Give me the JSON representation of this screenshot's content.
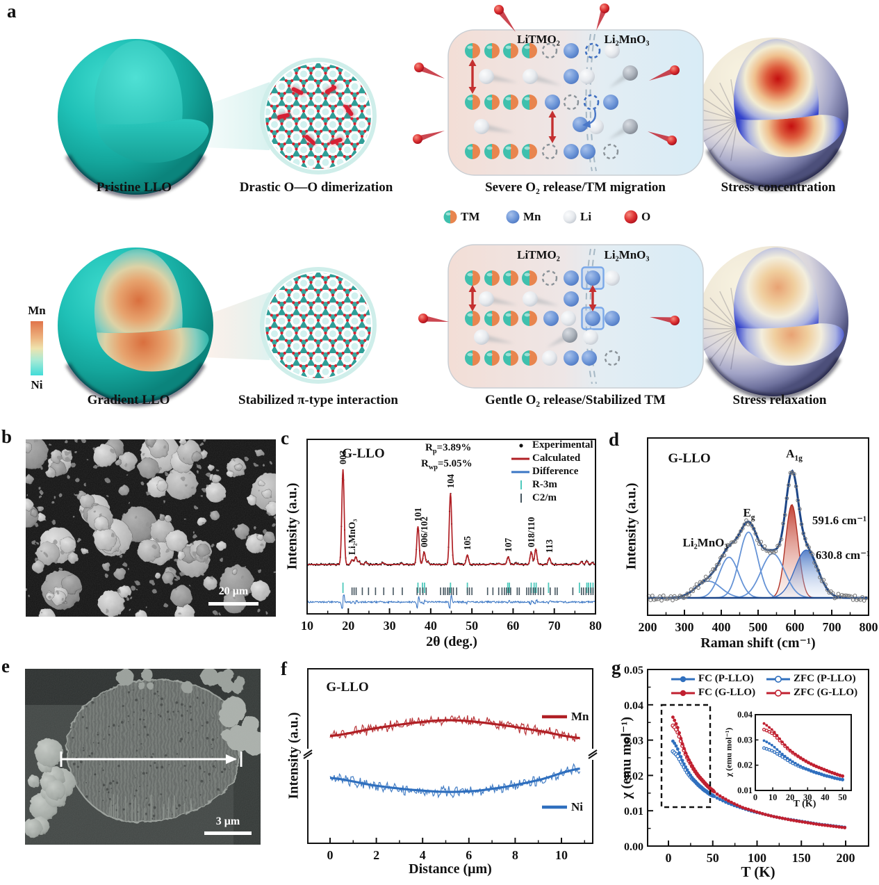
{
  "colors": {
    "teal": "#17b3aa",
    "orange": "#e0784a",
    "mn_blue": "#5b86cf",
    "li_grey": "#e7eaee",
    "o_red": "#cf1f2e",
    "xrd_calc": "#b01f24",
    "xrd_diff": "#3a76c4",
    "r3m_tick": "#4ec9bc",
    "c2m_tick": "#44545e",
    "raman_envelope": "#1c4587",
    "raman_component": "#6593d6",
    "raman_red": "#c0392b",
    "raman_blue": "#3a6bbf",
    "mn_red": "#b01f24",
    "ni_blue": "#2f6fbe",
    "fc_blue": "#2f6fbe",
    "fc_red": "#c02030"
  },
  "panel_a": {
    "label": "a",
    "row1": {
      "caption1": "Pristine LLO",
      "caption2": "Drastic O—O dimerization",
      "caption3": "Severe O₂ release/TM migration",
      "caption4": "Stress concentration",
      "box_title_left": "LiTMO₂",
      "box_title_right": "Li₂MnO₃"
    },
    "row2": {
      "caption1": "Gradient LLO",
      "caption2": "Stabilized π-type interaction",
      "caption3": "Gentle O₂ release/Stabilized TM",
      "caption4": "Stress relaxation",
      "box_title_left": "LiTMO₂",
      "box_title_right": "Li₂MnO₃"
    },
    "colorbar": {
      "top": "Mn",
      "bottom": "Ni"
    },
    "legend": [
      {
        "label": "TM"
      },
      {
        "label": "Mn"
      },
      {
        "label": "Li"
      },
      {
        "label": "O"
      }
    ]
  },
  "panel_b": {
    "label": "b",
    "scalebar": "20 μm"
  },
  "panel_e": {
    "label": "e",
    "scalebar": "3 μm"
  },
  "chart_data": [
    {
      "id": "xrd",
      "type": "line",
      "panel_label": "c",
      "title": "G-LLO",
      "xlabel": "2θ (deg.)",
      "ylabel": "Intensity (a.u.)",
      "xlim": [
        10,
        80
      ],
      "xticks": [
        10,
        20,
        30,
        40,
        50,
        60,
        70,
        80
      ],
      "r_factors": [
        {
          "base": "R",
          "sub": "p",
          "val": "=3.89%"
        },
        {
          "base": "R",
          "sub": "wp",
          "val": "=5.05%"
        }
      ],
      "legend": [
        {
          "label": "Experimental",
          "marker": "dot",
          "color": "#111111"
        },
        {
          "label": "Calculated",
          "marker": "line",
          "color": "#b01f24"
        },
        {
          "label": "Difference",
          "marker": "line",
          "color": "#3a76c4"
        },
        {
          "label": "R-3m",
          "marker": "tick",
          "color": "#4ec9bc"
        },
        {
          "label": "C2/m",
          "marker": "tick",
          "color": "#44545e"
        }
      ],
      "peaks": [
        {
          "two_theta": 18.7,
          "rel_intensity": 1.0,
          "hkl": "003"
        },
        {
          "two_theta": 20.9,
          "rel_intensity": 0.05,
          "hkl": "Li₂MnO₃"
        },
        {
          "two_theta": 21.8,
          "rel_intensity": 0.08
        },
        {
          "two_theta": 22.6,
          "rel_intensity": 0.03
        },
        {
          "two_theta": 24.3,
          "rel_intensity": 0.025
        },
        {
          "two_theta": 28.4,
          "rel_intensity": 0.02
        },
        {
          "two_theta": 32.9,
          "rel_intensity": 0.012
        },
        {
          "two_theta": 36.9,
          "rel_intensity": 0.4,
          "hkl": "101"
        },
        {
          "two_theta": 38.4,
          "rel_intensity": 0.13,
          "hkl": "006/102"
        },
        {
          "two_theta": 39.3,
          "rel_intensity": 0.03
        },
        {
          "two_theta": 44.8,
          "rel_intensity": 0.75,
          "hkl": "104"
        },
        {
          "two_theta": 46.5,
          "rel_intensity": 0.012
        },
        {
          "two_theta": 48.9,
          "rel_intensity": 0.1,
          "hkl": "105"
        },
        {
          "two_theta": 54.5,
          "rel_intensity": 0.01
        },
        {
          "two_theta": 56.5,
          "rel_intensity": 0.012
        },
        {
          "two_theta": 58.8,
          "rel_intensity": 0.08,
          "hkl": "107"
        },
        {
          "two_theta": 60.8,
          "rel_intensity": 0.015
        },
        {
          "two_theta": 64.4,
          "rel_intensity": 0.13,
          "hkl": "018/110"
        },
        {
          "two_theta": 65.5,
          "rel_intensity": 0.16
        },
        {
          "two_theta": 68.8,
          "rel_intensity": 0.07,
          "hkl": "113"
        },
        {
          "two_theta": 74.5,
          "rel_intensity": 0.012
        },
        {
          "two_theta": 76.6,
          "rel_intensity": 0.03
        },
        {
          "two_theta": 77.9,
          "rel_intensity": 0.035
        },
        {
          "two_theta": 79.2,
          "rel_intensity": 0.02
        }
      ],
      "r3m_ticks": [
        18.7,
        36.9,
        38.0,
        38.5,
        44.8,
        48.9,
        58.7,
        59.1,
        64.4,
        65.1,
        65.6,
        68.6,
        76.1,
        77.9,
        78.3,
        78.8,
        79.4
      ],
      "c2m_ticks": [
        20.9,
        21.4,
        21.9,
        23.4,
        24.9,
        26.6,
        28.6,
        30.9,
        33.1,
        36.7,
        37.4,
        38.1,
        38.9,
        42.4,
        43.1,
        43.5,
        44.1,
        44.5,
        45.0,
        45.5,
        46.3,
        48.9,
        49.4,
        50.0,
        53.8,
        55.1,
        56.5,
        57.3,
        57.9,
        58.4,
        58.9,
        59.4,
        61.0,
        61.5,
        63.3,
        63.8,
        64.3,
        64.9,
        65.4,
        66.1,
        66.7,
        67.4,
        69.0,
        70.2,
        70.7,
        74.5,
        76.6,
        77.1,
        77.7,
        78.3,
        78.9,
        79.4
      ]
    },
    {
      "id": "raman",
      "type": "line",
      "panel_label": "d",
      "title": "G-LLO",
      "xlabel": "Raman shift (cm⁻¹)",
      "ylabel": "Intensity (a.u.)",
      "xlim": [
        200,
        800
      ],
      "xticks": [
        200,
        300,
        400,
        500,
        600,
        700,
        800
      ],
      "annotations": {
        "li": "Li₂MnO₃",
        "eg_base": "E",
        "eg_sub": "g",
        "a1g_base": "A",
        "a1g_sub": "1g",
        "peak1": "591.6 cm⁻¹",
        "peak2": "630.8 cm⁻¹"
      },
      "components": [
        {
          "center": 365,
          "sigma": 34,
          "amp": 0.14,
          "style": "thin"
        },
        {
          "center": 421,
          "sigma": 26,
          "amp": 0.34,
          "style": "thin"
        },
        {
          "center": 474,
          "sigma": 25,
          "amp": 0.55,
          "style": "thin"
        },
        {
          "center": 540,
          "sigma": 32,
          "amp": 0.37,
          "style": "thin"
        },
        {
          "center": 591.6,
          "sigma": 17,
          "amp": 0.78,
          "style": "red-filled"
        },
        {
          "center": 630.8,
          "sigma": 31,
          "amp": 0.4,
          "style": "blue-filled"
        }
      ]
    },
    {
      "id": "linescan",
      "type": "line",
      "panel_label": "f",
      "title": "G-LLO",
      "xlabel": "Distance (μm)",
      "ylabel": "Intensity (a.u.)",
      "xlim": [
        0,
        11.4
      ],
      "xticks": [
        0,
        2,
        4,
        6,
        8,
        10
      ],
      "series": [
        {
          "name": "Mn",
          "color": "#b01f24",
          "trend": [
            [
              0,
              0.615
            ],
            [
              2,
              0.66
            ],
            [
              4,
              0.695
            ],
            [
              5.3,
              0.705
            ],
            [
              7,
              0.685
            ],
            [
              9,
              0.645
            ],
            [
              10.8,
              0.603
            ]
          ]
        },
        {
          "name": "Ni",
          "color": "#2f6fbe",
          "trend": [
            [
              0,
              0.375
            ],
            [
              2,
              0.33
            ],
            [
              4,
              0.302
            ],
            [
              5.5,
              0.295
            ],
            [
              7,
              0.312
            ],
            [
              9,
              0.362
            ],
            [
              10.8,
              0.428
            ]
          ]
        }
      ]
    },
    {
      "id": "chi",
      "type": "scatter",
      "panel_label": "g",
      "xlabel": "T (K)",
      "ylabel": "χ (emu mol⁻¹)",
      "xlim": [
        -24,
        224
      ],
      "xticks": [
        0,
        50,
        100,
        150,
        200
      ],
      "ylim": [
        0,
        0.05
      ],
      "yticks": [
        "0.00",
        "0.01",
        "0.02",
        "0.03",
        "0.04",
        "0.05"
      ],
      "legend": [
        {
          "label": "FC (P-LLO)",
          "color": "#2f6fbe",
          "fill": true
        },
        {
          "label": "ZFC (P-LLO)",
          "color": "#2f6fbe",
          "fill": false
        },
        {
          "label": "FC (G-LLO)",
          "color": "#c02030",
          "fill": true
        },
        {
          "label": "ZFC (G-LLO)",
          "color": "#c02030",
          "fill": false
        }
      ],
      "inset": {
        "xlim": [
          0,
          55
        ],
        "xticks": [
          0,
          10,
          20,
          30,
          40,
          50
        ],
        "ylim": [
          0.01,
          0.04
        ],
        "yticks": [
          "0.01",
          "0.02",
          "0.03",
          "0.04"
        ],
        "xlabel": "T (K)",
        "ylabel": "χ (emu mol⁻¹)"
      },
      "series": [
        {
          "name": "FC (P-LLO)",
          "color": "#2f6fbe",
          "fill": true,
          "points": [
            [
              5,
              0.0297
            ],
            [
              7.5,
              0.0288
            ],
            [
              10,
              0.0277
            ],
            [
              12.5,
              0.0262
            ],
            [
              15,
              0.0247
            ],
            [
              17.5,
              0.0233
            ],
            [
              20,
              0.0221
            ],
            [
              22.5,
              0.021
            ],
            [
              25,
              0.02
            ],
            [
              27.5,
              0.0191
            ],
            [
              30,
              0.0184
            ],
            [
              32.5,
              0.0177
            ],
            [
              35,
              0.0171
            ],
            [
              37.5,
              0.0165
            ],
            [
              40,
              0.016
            ],
            [
              42.5,
              0.0155
            ],
            [
              45,
              0.0151
            ],
            [
              47.5,
              0.0147
            ],
            [
              50,
              0.0143
            ],
            [
              55,
              0.0136
            ],
            [
              60,
              0.013
            ],
            [
              65,
              0.0124
            ],
            [
              70,
              0.0119
            ],
            [
              75,
              0.0114
            ],
            [
              80,
              0.011
            ],
            [
              85,
              0.0106
            ],
            [
              90,
              0.0102
            ],
            [
              95,
              0.0098
            ],
            [
              100,
              0.0095
            ],
            [
              110,
              0.0089
            ],
            [
              120,
              0.0083
            ],
            [
              130,
              0.0078
            ],
            [
              140,
              0.0074
            ],
            [
              150,
              0.007
            ],
            [
              160,
              0.0066
            ],
            [
              170,
              0.0062
            ],
            [
              180,
              0.0059
            ],
            [
              190,
              0.0056
            ],
            [
              200,
              0.0053
            ]
          ]
        },
        {
          "name": "ZFC (P-LLO)",
          "color": "#2f6fbe",
          "fill": false,
          "points": [
            [
              5,
              0.0268
            ],
            [
              7.5,
              0.0262
            ],
            [
              10,
              0.0256
            ],
            [
              12.5,
              0.0245
            ],
            [
              15,
              0.0235
            ],
            [
              17.5,
              0.0224
            ],
            [
              20,
              0.0213
            ],
            [
              22.5,
              0.0204
            ],
            [
              25,
              0.0196
            ],
            [
              27.5,
              0.0189
            ],
            [
              30,
              0.0183
            ],
            [
              32.5,
              0.0176
            ],
            [
              35,
              0.017
            ],
            [
              37.5,
              0.0165
            ],
            [
              40,
              0.0159
            ],
            [
              42.5,
              0.0155
            ],
            [
              45,
              0.015
            ],
            [
              47.5,
              0.0146
            ],
            [
              50,
              0.0143
            ]
          ]
        },
        {
          "name": "FC (G-LLO)",
          "color": "#c02030",
          "fill": true,
          "points": [
            [
              5,
              0.0365
            ],
            [
              7.5,
              0.0352
            ],
            [
              10,
              0.0338
            ],
            [
              12.5,
              0.0318
            ],
            [
              15,
              0.0296
            ],
            [
              17.5,
              0.0277
            ],
            [
              20,
              0.026
            ],
            [
              22.5,
              0.0247
            ],
            [
              25,
              0.0235
            ],
            [
              27.5,
              0.0223
            ],
            [
              30,
              0.0213
            ],
            [
              32.5,
              0.0204
            ],
            [
              35,
              0.0196
            ],
            [
              37.5,
              0.0188
            ],
            [
              40,
              0.0181
            ],
            [
              42.5,
              0.0174
            ],
            [
              45,
              0.0168
            ],
            [
              47.5,
              0.0162
            ],
            [
              50,
              0.0157
            ],
            [
              55,
              0.0147
            ],
            [
              60,
              0.0139
            ],
            [
              65,
              0.0132
            ],
            [
              70,
              0.0125
            ],
            [
              75,
              0.0119
            ],
            [
              80,
              0.0113
            ],
            [
              85,
              0.0108
            ],
            [
              90,
              0.0104
            ],
            [
              95,
              0.01
            ],
            [
              100,
              0.0096
            ],
            [
              110,
              0.0089
            ],
            [
              120,
              0.0083
            ],
            [
              130,
              0.0078
            ],
            [
              140,
              0.0073
            ],
            [
              150,
              0.0069
            ],
            [
              160,
              0.0065
            ],
            [
              170,
              0.0061
            ],
            [
              180,
              0.0058
            ],
            [
              190,
              0.0055
            ],
            [
              200,
              0.0052
            ]
          ]
        },
        {
          "name": "ZFC (G-LLO)",
          "color": "#c02030",
          "fill": false,
          "points": [
            [
              5,
              0.0341
            ],
            [
              7.5,
              0.0334
            ],
            [
              10,
              0.0324
            ],
            [
              12.5,
              0.0308
            ],
            [
              15,
              0.029
            ],
            [
              17.5,
              0.0272
            ],
            [
              20,
              0.0257
            ],
            [
              22.5,
              0.0244
            ],
            [
              25,
              0.0233
            ],
            [
              27.5,
              0.0222
            ],
            [
              30,
              0.0212
            ],
            [
              32.5,
              0.0203
            ],
            [
              35,
              0.0195
            ],
            [
              37.5,
              0.0188
            ],
            [
              40,
              0.0181
            ],
            [
              42.5,
              0.0174
            ],
            [
              45,
              0.0168
            ],
            [
              47.5,
              0.0162
            ],
            [
              50,
              0.0157
            ]
          ]
        }
      ]
    }
  ]
}
